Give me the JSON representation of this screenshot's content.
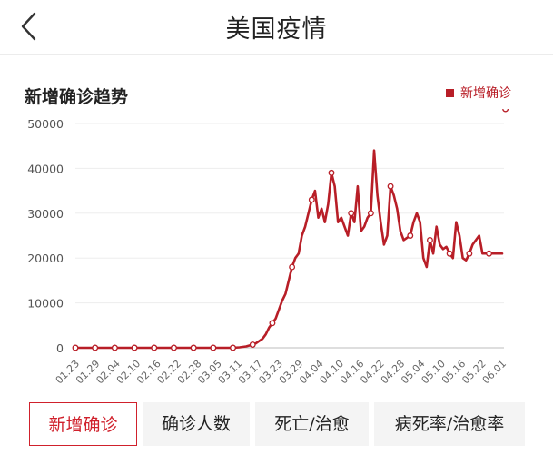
{
  "header": {
    "title": "美国疫情",
    "back_icon": "chevron-left-icon"
  },
  "section": {
    "title": "新增确诊趋势"
  },
  "legend": {
    "label": "新增确诊",
    "color": "#b81e27"
  },
  "tabs": [
    {
      "label": "新增确诊",
      "active": true
    },
    {
      "label": "确诊人数",
      "active": false
    },
    {
      "label": "死亡/治愈",
      "active": false
    },
    {
      "label": "病死率/治愈率",
      "active": false
    }
  ],
  "chart_data": {
    "type": "line",
    "title": "新增确诊趋势",
    "xlabel": "",
    "ylabel": "",
    "ylim": [
      0,
      50000
    ],
    "grid": true,
    "legend_position": "top-right",
    "yticks": [
      "50000",
      "40000",
      "30000",
      "20000",
      "10000",
      "0"
    ],
    "xtick_labels": [
      "01.23",
      "01.29",
      "02.04",
      "02.10",
      "02.16",
      "02.22",
      "02.28",
      "03.05",
      "03.11",
      "03.17",
      "03.23",
      "03.29",
      "04.04",
      "04.10",
      "04.16",
      "04.22",
      "04.28",
      "05.04",
      "05.10",
      "05.16",
      "05.22",
      "06.01"
    ],
    "series": [
      {
        "name": "新增确诊",
        "color": "#b81e27",
        "values": [
          0,
          0,
          0,
          0,
          0,
          0,
          0,
          0,
          0,
          0,
          0,
          0,
          0,
          0,
          0,
          0,
          0,
          0,
          0,
          0,
          0,
          0,
          0,
          0,
          0,
          0,
          0,
          0,
          0,
          0,
          0,
          0,
          0,
          0,
          0,
          0,
          0,
          0,
          0,
          0,
          0,
          0,
          0,
          0,
          0,
          0,
          0,
          0,
          0,
          50,
          100,
          200,
          300,
          500,
          700,
          1000,
          1500,
          2000,
          3000,
          4500,
          5500,
          6500,
          8500,
          10500,
          12000,
          15000,
          18000,
          20000,
          21000,
          25000,
          27000,
          30000,
          33000,
          35000,
          29000,
          31000,
          28000,
          32000,
          39000,
          36000,
          28000,
          29000,
          27000,
          25000,
          30000,
          28000,
          36000,
          26000,
          27000,
          29000,
          30000,
          44000,
          34000,
          28000,
          23000,
          25000,
          36000,
          34000,
          31000,
          26000,
          24000,
          24500,
          25000,
          28000,
          30000,
          28000,
          20000,
          18000,
          24000,
          21000,
          27000,
          23000,
          22000,
          22500,
          21000,
          20000,
          28000,
          25000,
          20000,
          19500,
          21000,
          23000,
          24000,
          25000,
          21000,
          21000,
          21000,
          21000,
          21000,
          21000,
          21000
        ],
        "markers": [
          0,
          6,
          12,
          18,
          24,
          30,
          36,
          42,
          48,
          54,
          60,
          66,
          72,
          78,
          84,
          90,
          96,
          102,
          108,
          114,
          120,
          126,
          131
        ]
      }
    ]
  }
}
